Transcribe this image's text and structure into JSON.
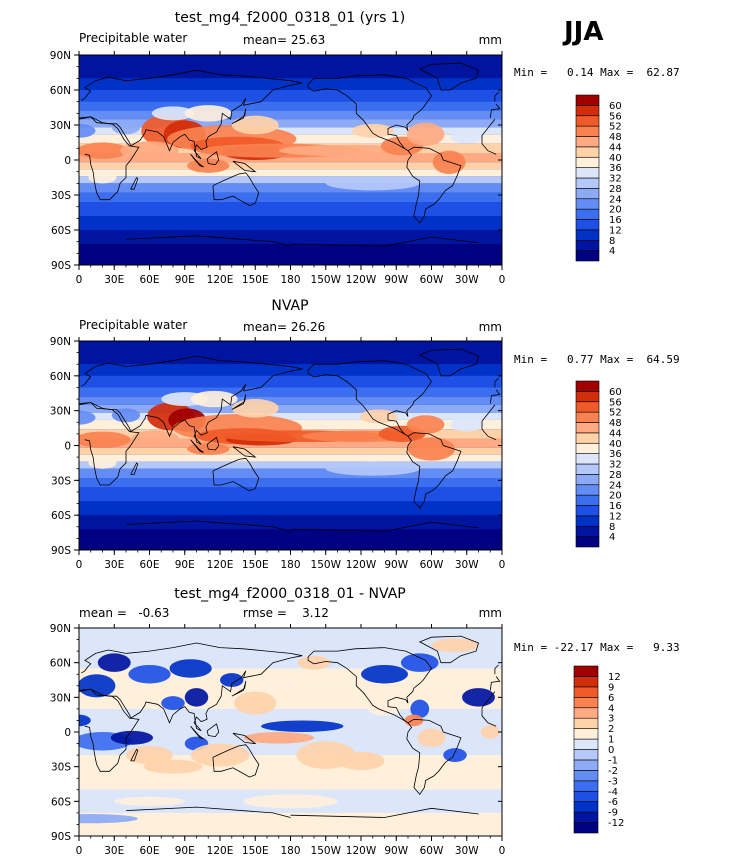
{
  "season": "JJA",
  "chart_data": [
    {
      "type": "heatmap",
      "title": "test_mg4_f2000_0318_01 (yrs 1)",
      "left_label": "Precipitable water",
      "center_label": "mean=  25.63",
      "units": "mm",
      "stats": {
        "min": "0.14",
        "max": "62.87"
      },
      "stats_text": "Min =   0.14 Max =  62.87",
      "x_ticks": [
        "0",
        "30E",
        "60E",
        "90E",
        "120E",
        "150E",
        "180",
        "150W",
        "120W",
        "90W",
        "60W",
        "30W",
        "0"
      ],
      "y_ticks": [
        "90N",
        "60N",
        "30N",
        "0",
        "30S",
        "60S",
        "90S"
      ],
      "levels": [
        "4",
        "8",
        "12",
        "16",
        "20",
        "24",
        "28",
        "32",
        "36",
        "40",
        "44",
        "48",
        "52",
        "56",
        "60"
      ],
      "colors": [
        "#000082",
        "#0014a0",
        "#0032c8",
        "#1e50e6",
        "#3c6ef0",
        "#648cf5",
        "#8caaf5",
        "#b4c8fa",
        "#dce6fa",
        "#fff0dc",
        "#ffd2aa",
        "#ffaa82",
        "#fa8250",
        "#f05a28",
        "#d22d0a",
        "#a00000"
      ]
    },
    {
      "type": "heatmap",
      "title": "NVAP",
      "left_label": "Precipitable water",
      "center_label": "mean=  26.26",
      "units": "mm",
      "stats": {
        "min": "0.77",
        "max": "64.59"
      },
      "stats_text": "Min =   0.77 Max =  64.59",
      "x_ticks": [
        "0",
        "30E",
        "60E",
        "90E",
        "120E",
        "150E",
        "180",
        "150W",
        "120W",
        "90W",
        "60W",
        "30W",
        "0"
      ],
      "y_ticks": [
        "90N",
        "60N",
        "30N",
        "0",
        "30S",
        "60S",
        "90S"
      ],
      "levels": [
        "4",
        "8",
        "12",
        "16",
        "20",
        "24",
        "28",
        "32",
        "36",
        "40",
        "44",
        "48",
        "52",
        "56",
        "60"
      ],
      "colors": [
        "#000082",
        "#0014a0",
        "#0032c8",
        "#1e50e6",
        "#3c6ef0",
        "#648cf5",
        "#8caaf5",
        "#b4c8fa",
        "#dce6fa",
        "#fff0dc",
        "#ffd2aa",
        "#ffaa82",
        "#fa8250",
        "#f05a28",
        "#d22d0a",
        "#a00000"
      ]
    },
    {
      "type": "heatmap",
      "title": "test_mg4_f2000_0318_01 - NVAP",
      "left_label": "mean =   -0.63",
      "center_label": "rmse =    3.12",
      "units": "mm",
      "stats": {
        "min": "-22.17",
        "max": "9.33"
      },
      "stats_text": "Min = -22.17 Max =   9.33",
      "x_ticks": [
        "0",
        "30E",
        "60E",
        "90E",
        "120E",
        "150E",
        "180",
        "150W",
        "120W",
        "90W",
        "60W",
        "30W",
        "0"
      ],
      "y_ticks": [
        "90N",
        "60N",
        "30N",
        "0",
        "30S",
        "60S",
        "90S"
      ],
      "levels": [
        "-12",
        "-9",
        "-6",
        "-4",
        "-3",
        "-2",
        "-1",
        "0",
        "1",
        "2",
        "3",
        "4",
        "6",
        "9",
        "12"
      ],
      "colors": [
        "#000082",
        "#0014a0",
        "#0032c8",
        "#1e50e6",
        "#3c6ef0",
        "#648cf5",
        "#8caaf5",
        "#b4c8fa",
        "#dce6fa",
        "#fff0dc",
        "#ffd2aa",
        "#ffaa82",
        "#fa8250",
        "#f05a28",
        "#d22d0a",
        "#a00000"
      ]
    }
  ]
}
